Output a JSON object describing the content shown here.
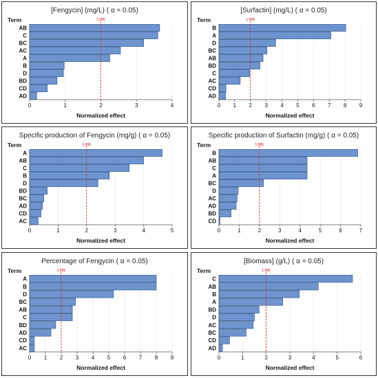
{
  "chart_data": [
    {
      "type": "bar",
      "orientation": "horizontal",
      "title": "[Fengycin] (mg/L) ( α = 0.05)",
      "term_label": "Term",
      "xlabel": "Normalized effect",
      "critical_value": 1.995,
      "critical_label": "1.995",
      "xlim": [
        0,
        4
      ],
      "xticks": [
        0,
        1,
        2,
        3,
        4
      ],
      "categories": [
        "AB",
        "C",
        "BC",
        "AC",
        "A",
        "B",
        "D",
        "BD",
        "CD",
        "AD"
      ],
      "values": [
        3.65,
        3.6,
        3.2,
        2.55,
        2.25,
        0.97,
        0.95,
        0.77,
        0.5,
        0.2
      ],
      "colors": {
        "bar": "#6d94cf",
        "line": "#d03030"
      }
    },
    {
      "type": "bar",
      "orientation": "horizontal",
      "title": "[Surfactin] (mg/L) ( α = 0.05)",
      "term_label": "Term",
      "xlabel": "Normalized effect",
      "critical_value": 1.995,
      "critical_label": "1.995",
      "xlim": [
        0,
        9
      ],
      "xticks": [
        0,
        1,
        2,
        3,
        4,
        5,
        6,
        7,
        8,
        9
      ],
      "categories": [
        "B",
        "A",
        "D",
        "BC",
        "AB",
        "BD",
        "C",
        "AC",
        "CD",
        "AD"
      ],
      "values": [
        8.05,
        7.1,
        3.6,
        3.05,
        2.8,
        2.6,
        1.95,
        1.35,
        0.45,
        0.42
      ],
      "colors": {
        "bar": "#6d94cf",
        "line": "#d03030"
      }
    },
    {
      "type": "bar",
      "orientation": "horizontal",
      "title": "Specific production of Fengycin (mg/g) ( α = 0.05)",
      "term_label": "Term",
      "xlabel": "Normalized effect",
      "critical_value": 1.995,
      "critical_label": "1.995",
      "xlim": [
        0,
        5
      ],
      "xticks": [
        0,
        1,
        2,
        3,
        4,
        5
      ],
      "categories": [
        "A",
        "AB",
        "C",
        "B",
        "D",
        "BD",
        "BC",
        "AD",
        "CD",
        "AC"
      ],
      "values": [
        4.65,
        4.0,
        3.5,
        2.8,
        2.4,
        0.62,
        0.5,
        0.45,
        0.4,
        0.3
      ],
      "colors": {
        "bar": "#6d94cf",
        "line": "#d03030"
      }
    },
    {
      "type": "bar",
      "orientation": "horizontal",
      "title": "Specific production of Surfactin (mg/g) ( α = 0.05)",
      "term_label": "Term",
      "xlabel": "Normalized effect",
      "critical_value": 1.995,
      "critical_label": "1.995",
      "xlim": [
        0,
        7
      ],
      "xticks": [
        0,
        1,
        2,
        3,
        4,
        5,
        6,
        7
      ],
      "categories": [
        "B",
        "AB",
        "C",
        "A",
        "BC",
        "D",
        "AC",
        "AD",
        "BD",
        "CD"
      ],
      "values": [
        6.85,
        4.35,
        4.35,
        4.35,
        2.2,
        0.95,
        0.9,
        0.85,
        0.6,
        0.05
      ],
      "colors": {
        "bar": "#6d94cf",
        "line": "#d03030"
      }
    },
    {
      "type": "bar",
      "orientation": "horizontal",
      "title": "Percentage of Fengycin ( α = 0.05)",
      "term_label": "Term",
      "xlabel": "Normalized effect",
      "critical_value": 1.995,
      "critical_label": "1.995",
      "xlim": [
        0,
        9
      ],
      "xticks": [
        0,
        1,
        2,
        3,
        4,
        5,
        6,
        7,
        8,
        9
      ],
      "categories": [
        "A",
        "B",
        "D",
        "BC",
        "AB",
        "C",
        "BD",
        "AD",
        "CD",
        "AC"
      ],
      "values": [
        8.0,
        8.0,
        5.3,
        2.9,
        2.7,
        2.7,
        1.65,
        1.35,
        0.3,
        0.3
      ],
      "colors": {
        "bar": "#6d94cf",
        "line": "#d03030"
      }
    },
    {
      "type": "bar",
      "orientation": "horizontal",
      "title": "[Biomass] (g/L) ( α = 0.05)",
      "term_label": "Term",
      "xlabel": "Normalized effect",
      "critical_value": 1.995,
      "critical_label": "1.995",
      "xlim": [
        0,
        6
      ],
      "xticks": [
        0,
        1,
        2,
        3,
        4,
        5,
        6
      ],
      "categories": [
        "C",
        "AB",
        "B",
        "A",
        "BD",
        "D",
        "AC",
        "BC",
        "CD",
        "AD"
      ],
      "values": [
        5.65,
        4.2,
        3.4,
        2.7,
        1.7,
        1.5,
        1.45,
        1.15,
        0.45,
        0.15
      ],
      "colors": {
        "bar": "#6d94cf",
        "line": "#d03030"
      }
    }
  ]
}
